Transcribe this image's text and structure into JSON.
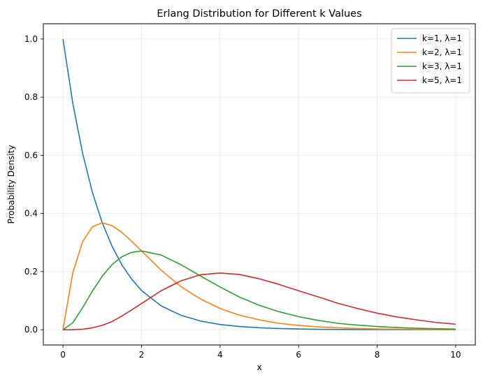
{
  "chart_data": {
    "type": "line",
    "title": "Erlang Distribution for Different k Values",
    "xlabel": "x",
    "ylabel": "Probability Density",
    "xlim": [
      -0.5,
      10.5
    ],
    "ylim": [
      -0.0525,
      1.0525
    ],
    "xticks": [
      0,
      2,
      4,
      6,
      8,
      10
    ],
    "xtick_labels": [
      "0",
      "2",
      "4",
      "6",
      "8",
      "10"
    ],
    "yticks": [
      0.0,
      0.2,
      0.4,
      0.6,
      0.8,
      1.0
    ],
    "ytick_labels": [
      "0.0",
      "0.2",
      "0.4",
      "0.6",
      "0.8",
      "1.0"
    ],
    "grid": true,
    "legend_position": "top-right",
    "x": [
      0,
      0.25,
      0.5,
      0.75,
      1,
      1.25,
      1.5,
      1.75,
      2,
      2.5,
      3,
      3.5,
      4,
      4.5,
      5,
      5.5,
      6,
      6.5,
      7,
      7.5,
      8,
      8.5,
      9,
      9.5,
      10
    ],
    "series": [
      {
        "name": "k=1, λ=1",
        "color": "#1f77b4",
        "values": [
          1.0,
          0.779,
          0.607,
          0.472,
          0.368,
          0.287,
          0.223,
          0.174,
          0.135,
          0.082,
          0.05,
          0.03,
          0.018,
          0.011,
          0.0067,
          0.0041,
          0.0025,
          0.0015,
          0.0009,
          0.00055,
          0.00034,
          0.0002,
          0.00012,
          7e-05,
          4.5e-05
        ]
      },
      {
        "name": "k=2, λ=1",
        "color": "#ff7f0e",
        "values": [
          0.0,
          0.195,
          0.303,
          0.354,
          0.368,
          0.358,
          0.335,
          0.304,
          0.271,
          0.205,
          0.149,
          0.106,
          0.073,
          0.05,
          0.034,
          0.022,
          0.015,
          0.0098,
          0.0064,
          0.0041,
          0.0027,
          0.0017,
          0.0011,
          0.0007,
          0.00045
        ]
      },
      {
        "name": "k=3, λ=1",
        "color": "#2ca02c",
        "values": [
          0.0,
          0.024,
          0.076,
          0.133,
          0.184,
          0.224,
          0.251,
          0.266,
          0.271,
          0.257,
          0.224,
          0.185,
          0.147,
          0.112,
          0.084,
          0.062,
          0.045,
          0.032,
          0.022,
          0.016,
          0.011,
          0.0073,
          0.005,
          0.0034,
          0.0023
        ]
      },
      {
        "name": "k=5, λ=1",
        "color": "#d62728",
        "values": [
          0.0,
          0.00013,
          0.0016,
          0.0066,
          0.015,
          0.028,
          0.047,
          0.068,
          0.09,
          0.134,
          0.168,
          0.189,
          0.195,
          0.19,
          0.175,
          0.156,
          0.134,
          0.113,
          0.091,
          0.073,
          0.057,
          0.044,
          0.034,
          0.025,
          0.019
        ]
      }
    ]
  }
}
